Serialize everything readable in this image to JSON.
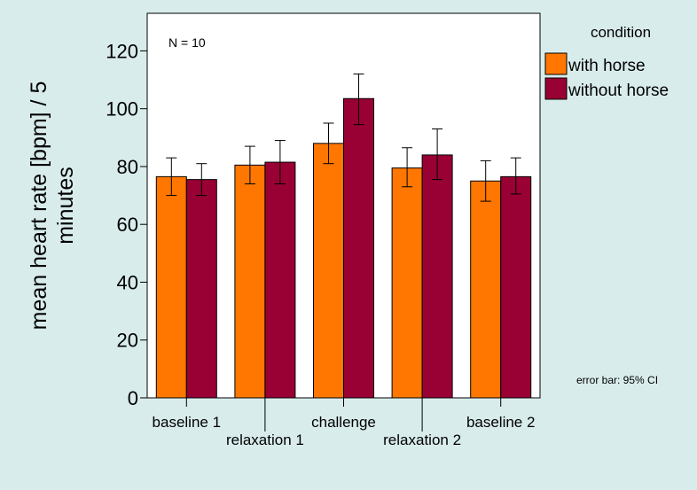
{
  "chart_data": {
    "type": "bar",
    "annotation": "N = 10",
    "ylabel_line1": "mean heart rate [bpm] / 5",
    "ylabel_line2": "minutes",
    "xlabel": "",
    "ylim": [
      0,
      133
    ],
    "yticks": [
      0,
      20,
      40,
      60,
      80,
      100,
      120
    ],
    "categories": [
      "baseline 1",
      "relaxation 1",
      "challenge",
      "relaxation 2",
      "baseline 2"
    ],
    "legend_title": "condition",
    "legend_position": "top-right outside",
    "footnote": "error bar: 95% CI",
    "series": [
      {
        "name": "with horse",
        "color": "#ff7700",
        "values": [
          76.5,
          80.5,
          88,
          79.5,
          75
        ],
        "ci_low": [
          70,
          74,
          81,
          73,
          68
        ],
        "ci_high": [
          83,
          87,
          95,
          86.5,
          82
        ]
      },
      {
        "name": "without horse",
        "color": "#990033",
        "values": [
          75.5,
          81.5,
          103.5,
          84,
          76.5
        ],
        "ci_low": [
          70,
          74,
          94.5,
          75.5,
          70.5
        ],
        "ci_high": [
          81,
          89,
          112,
          93,
          83
        ]
      }
    ]
  }
}
